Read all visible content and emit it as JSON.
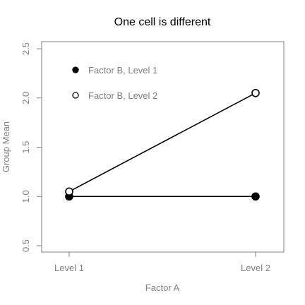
{
  "chart_data": {
    "type": "line",
    "title": "One cell is different",
    "xlabel": "Factor A",
    "ylabel": "Group Mean",
    "categories": [
      "Level 1",
      "Level 2"
    ],
    "ylim": [
      0.5,
      2.5
    ],
    "yticks": [
      "0.5",
      "1.0",
      "1.5",
      "2.0",
      "2.5"
    ],
    "legend_position": "top-left",
    "grid": false,
    "series": [
      {
        "name": "Factor B, Level 1",
        "values": [
          1.0,
          1.0
        ],
        "marker": "filled-circle",
        "color": "#000000"
      },
      {
        "name": "Factor B, Level 2",
        "values": [
          1.05,
          2.05
        ],
        "marker": "open-circle",
        "color": "#000000"
      }
    ]
  }
}
